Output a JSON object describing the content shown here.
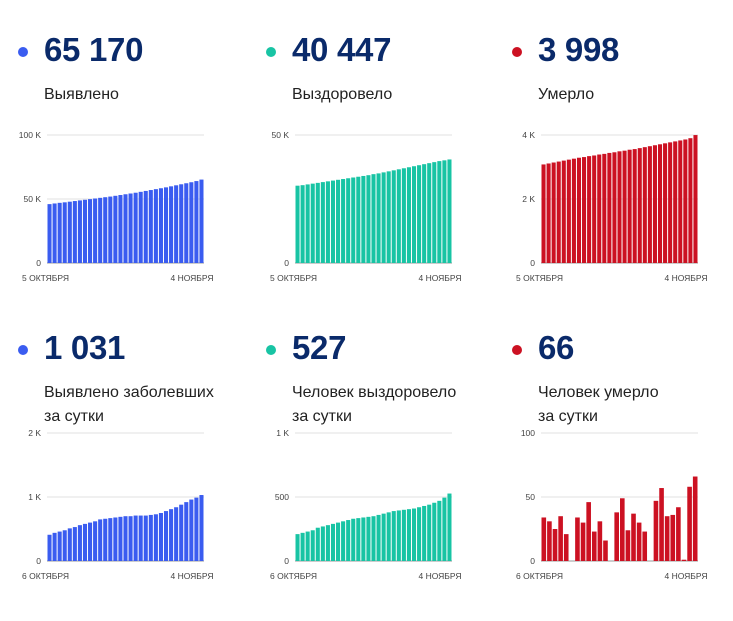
{
  "panels": [
    {
      "value": "65 170",
      "label_lines": [
        "Выявлено"
      ],
      "color": "#3a5cf0",
      "chart_data": {
        "type": "bar",
        "ylim": [
          0,
          100000
        ],
        "yticks": [
          {
            "v": 0,
            "label": "0"
          },
          {
            "v": 50000,
            "label": "50 K"
          },
          {
            "v": 100000,
            "label": "100 K"
          }
        ],
        "xlabels": [
          "5 ОКТЯБРЯ",
          "4 НОЯБРЯ"
        ],
        "values": [
          46000,
          46500,
          47000,
          47400,
          47900,
          48400,
          48900,
          49400,
          49900,
          50400,
          50900,
          51400,
          51900,
          52500,
          53100,
          53700,
          54300,
          54900,
          55600,
          56300,
          57000,
          57700,
          58400,
          59100,
          59900,
          60700,
          61500,
          62300,
          63100,
          64000,
          65170
        ]
      }
    },
    {
      "value": "40 447",
      "label_lines": [
        "Выздоровело"
      ],
      "color": "#18c4a4",
      "chart_data": {
        "type": "bar",
        "ylim": [
          0,
          50000
        ],
        "yticks": [
          {
            "v": 0,
            "label": "0"
          },
          {
            "v": 50000,
            "label": "50 K"
          }
        ],
        "xlabels": [
          "5 ОКТЯБРЯ",
          "4 НОЯБРЯ"
        ],
        "values": [
          30200,
          30400,
          30700,
          31000,
          31300,
          31600,
          31900,
          32200,
          32500,
          32800,
          33100,
          33400,
          33700,
          34000,
          34300,
          34700,
          35000,
          35400,
          35800,
          36200,
          36600,
          37000,
          37400,
          37800,
          38200,
          38600,
          39000,
          39400,
          39800,
          40100,
          40447
        ]
      }
    },
    {
      "value": "3 998",
      "label_lines": [
        "Умерло"
      ],
      "color": "#cc1122",
      "chart_data": {
        "type": "bar",
        "ylim": [
          0,
          4000
        ],
        "yticks": [
          {
            "v": 0,
            "label": "0"
          },
          {
            "v": 2000,
            "label": "2 K"
          },
          {
            "v": 4000,
            "label": "4 K"
          }
        ],
        "xlabels": [
          "5 ОКТЯБРЯ",
          "4 НОЯБРЯ"
        ],
        "values": [
          3080,
          3110,
          3140,
          3170,
          3200,
          3230,
          3260,
          3290,
          3310,
          3340,
          3360,
          3390,
          3410,
          3440,
          3460,
          3490,
          3510,
          3540,
          3560,
          3590,
          3620,
          3650,
          3680,
          3710,
          3740,
          3770,
          3800,
          3830,
          3860,
          3900,
          3998
        ]
      }
    },
    {
      "value": "1 031",
      "label_lines": [
        "Выявлено заболевших",
        "за сутки"
      ],
      "color": "#3a5cf0",
      "chart_data": {
        "type": "bar",
        "ylim": [
          0,
          2000
        ],
        "yticks": [
          {
            "v": 0,
            "label": "0"
          },
          {
            "v": 1000,
            "label": "1 K"
          },
          {
            "v": 2000,
            "label": "2 K"
          }
        ],
        "xlabels": [
          "6 ОКТЯБРЯ",
          "4 НОЯБРЯ"
        ],
        "values": [
          410,
          440,
          460,
          480,
          510,
          530,
          560,
          580,
          600,
          620,
          650,
          660,
          670,
          680,
          690,
          700,
          700,
          710,
          710,
          710,
          720,
          730,
          750,
          780,
          810,
          840,
          880,
          920,
          960,
          990,
          1031
        ]
      }
    },
    {
      "value": "527",
      "label_lines": [
        "Человек выздоровело",
        "за сутки"
      ],
      "color": "#18c4a4",
      "chart_data": {
        "type": "bar",
        "ylim": [
          0,
          1000
        ],
        "yticks": [
          {
            "v": 0,
            "label": "0"
          },
          {
            "v": 500,
            "label": "500"
          },
          {
            "v": 1000,
            "label": "1 K"
          }
        ],
        "xlabels": [
          "6 ОКТЯБРЯ",
          "4 НОЯБРЯ"
        ],
        "values": [
          210,
          220,
          230,
          240,
          260,
          270,
          280,
          290,
          300,
          310,
          320,
          330,
          335,
          340,
          345,
          350,
          360,
          370,
          380,
          390,
          395,
          400,
          405,
          410,
          420,
          430,
          440,
          455,
          470,
          495,
          527
        ]
      }
    },
    {
      "value": "66",
      "label_lines": [
        "Человек умерло",
        "за сутки"
      ],
      "color": "#cc1122",
      "chart_data": {
        "type": "bar",
        "ylim": [
          0,
          100
        ],
        "yticks": [
          {
            "v": 0,
            "label": "0"
          },
          {
            "v": 50,
            "label": "50"
          },
          {
            "v": 100,
            "label": "100"
          }
        ],
        "xlabels": [
          "6 ОКТЯБРЯ",
          "4 НОЯБРЯ"
        ],
        "values": [
          34,
          31,
          25,
          35,
          21,
          0,
          34,
          30,
          46,
          23,
          31,
          16,
          0,
          38,
          49,
          24,
          37,
          30,
          23,
          0,
          47,
          57,
          35,
          36,
          42,
          1,
          58,
          66
        ]
      }
    }
  ]
}
